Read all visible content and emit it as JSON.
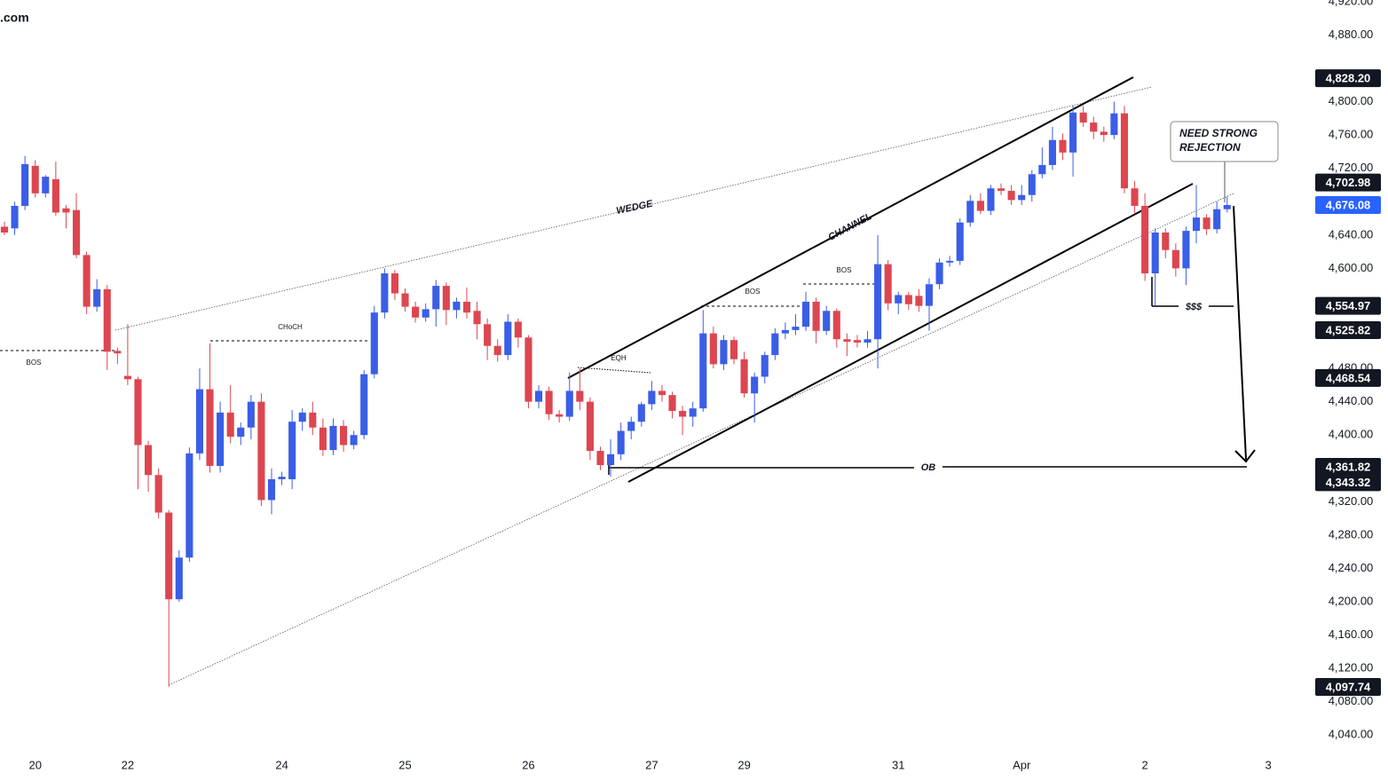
{
  "chart_data": {
    "type": "candlestick",
    "site": ".com",
    "up_color": "#3a5ee6",
    "down_color": "#dd4650",
    "ylim": [
      4019,
      4922
    ],
    "xlim": [
      -0.43,
      127.4
    ],
    "yticks": [
      {
        "value": 4040,
        "label": "4,040.00"
      },
      {
        "value": 4080,
        "label": "4,080.00"
      },
      {
        "value": 4120,
        "label": "4,120.00"
      },
      {
        "value": 4160,
        "label": "4,160.00"
      },
      {
        "value": 4200,
        "label": "4,200.00"
      },
      {
        "value": 4240,
        "label": "4,240.00"
      },
      {
        "value": 4280,
        "label": "4,280.00"
      },
      {
        "value": 4320,
        "label": "4,320.00"
      },
      {
        "value": 4400,
        "label": "4,400.00"
      },
      {
        "value": 4440,
        "label": "4,440.00"
      },
      {
        "value": 4480,
        "label": "4,480.00"
      },
      {
        "value": 4600,
        "label": "4,600.00"
      },
      {
        "value": 4640,
        "label": "4,640.00"
      },
      {
        "value": 4720,
        "label": "4,720.00"
      },
      {
        "value": 4760,
        "label": "4,760.00"
      },
      {
        "value": 4800,
        "label": "4,800.00"
      },
      {
        "value": 4880,
        "label": "4,880.00"
      },
      {
        "value": 4920,
        "label": "4,920.00"
      }
    ],
    "xticks": [
      {
        "value": 3,
        "label": "20"
      },
      {
        "value": 12,
        "label": "22"
      },
      {
        "value": 27,
        "label": "24"
      },
      {
        "value": 39,
        "label": "25"
      },
      {
        "value": 51,
        "label": "26"
      },
      {
        "value": 63,
        "label": "27"
      },
      {
        "value": 72,
        "label": "29"
      },
      {
        "value": 87,
        "label": "31"
      },
      {
        "value": 99,
        "label": "Apr"
      },
      {
        "value": 111,
        "label": "2"
      },
      {
        "value": 123,
        "label": "3"
      }
    ],
    "price_tags": [
      {
        "value": 4828.2,
        "label": "4,828.20",
        "color": "#131722"
      },
      {
        "value": 4702.98,
        "label": "4,702.98",
        "color": "#131722"
      },
      {
        "value": 4676.08,
        "label": "4,676.08",
        "color": "#2962ff"
      },
      {
        "value": 4554.97,
        "label": "4,554.97",
        "color": "#131722"
      },
      {
        "value": 4525.82,
        "label": "4,525.82",
        "color": "#131722"
      },
      {
        "value": 4468.54,
        "label": "4,468.54",
        "color": "#131722"
      },
      {
        "value": 4361.82,
        "label": "4,361.82",
        "color": "#131722"
      },
      {
        "value": 4343.32,
        "label": "4,343.32",
        "color": "#131722"
      },
      {
        "value": 4097.74,
        "label": "4,097.74",
        "color": "#131722"
      }
    ],
    "annotations": {
      "wedge": "WEDGE",
      "channel": "CHANNEL",
      "choch": "CHoCH",
      "bos_left": "BOS",
      "bos_mid": "BOS",
      "bos_right": "BOS",
      "eqh": "EQH",
      "ob": "OB",
      "liquidity": "$$$",
      "note_line1": "NEED STRONG",
      "note_line2": "REJECTION"
    },
    "candles": [
      [
        4650,
        4656,
        4640,
        4643
      ],
      [
        4648,
        4680,
        4640,
        4675
      ],
      [
        4675,
        4735,
        4670,
        4725
      ],
      [
        4723,
        4730,
        4685,
        4690
      ],
      [
        4690,
        4712,
        4685,
        4710
      ],
      [
        4707,
        4728,
        4663,
        4667
      ],
      [
        4672,
        4676,
        4648,
        4667
      ],
      [
        4670,
        4690,
        4612,
        4616
      ],
      [
        4616,
        4620,
        4545,
        4554
      ],
      [
        4554,
        4587,
        4548,
        4575
      ],
      [
        4575,
        4580,
        4478,
        4500
      ],
      [
        4501,
        4505,
        4485,
        4498
      ],
      [
        4471,
        4533,
        4460,
        4467
      ],
      [
        4467,
        4470,
        4335,
        4388
      ],
      [
        4388,
        4393,
        4332,
        4352
      ],
      [
        4352,
        4360,
        4300,
        4307
      ],
      [
        4307,
        4310,
        4098,
        4203
      ],
      [
        4203,
        4262,
        4200,
        4253
      ],
      [
        4253,
        4385,
        4248,
        4378
      ],
      [
        4378,
        4480,
        4370,
        4455
      ],
      [
        4455,
        4510,
        4355,
        4363
      ],
      [
        4363,
        4440,
        4355,
        4427
      ],
      [
        4427,
        4460,
        4390,
        4398
      ],
      [
        4398,
        4415,
        4388,
        4409
      ],
      [
        4409,
        4448,
        4395,
        4440
      ],
      [
        4440,
        4450,
        4315,
        4322
      ],
      [
        4322,
        4360,
        4305,
        4347
      ],
      [
        4347,
        4356,
        4340,
        4350
      ],
      [
        4347,
        4430,
        4335,
        4416
      ],
      [
        4416,
        4432,
        4405,
        4427
      ],
      [
        4427,
        4440,
        4400,
        4409
      ],
      [
        4409,
        4420,
        4375,
        4382
      ],
      [
        4382,
        4420,
        4376,
        4411
      ],
      [
        4411,
        4418,
        4380,
        4388
      ],
      [
        4388,
        4405,
        4383,
        4400
      ],
      [
        4400,
        4478,
        4395,
        4473
      ],
      [
        4473,
        4555,
        4468,
        4547
      ],
      [
        4547,
        4600,
        4540,
        4594
      ],
      [
        4594,
        4598,
        4562,
        4570
      ],
      [
        4570,
        4576,
        4548,
        4554
      ],
      [
        4554,
        4560,
        4535,
        4541
      ],
      [
        4541,
        4558,
        4536,
        4551
      ],
      [
        4551,
        4586,
        4530,
        4579
      ],
      [
        4579,
        4583,
        4532,
        4550
      ],
      [
        4550,
        4565,
        4540,
        4560
      ],
      [
        4560,
        4577,
        4540,
        4547
      ],
      [
        4549,
        4560,
        4515,
        4533
      ],
      [
        4533,
        4540,
        4490,
        4507
      ],
      [
        4507,
        4515,
        4488,
        4496
      ],
      [
        4496,
        4545,
        4490,
        4536
      ],
      [
        4536,
        4540,
        4505,
        4517
      ],
      [
        4517,
        4520,
        4432,
        4440
      ],
      [
        4440,
        4460,
        4432,
        4453
      ],
      [
        4453,
        4458,
        4418,
        4425
      ],
      [
        4425,
        4430,
        4415,
        4422
      ],
      [
        4422,
        4475,
        4417,
        4453
      ],
      [
        4453,
        4480,
        4430,
        4440
      ],
      [
        4440,
        4445,
        4370,
        4381
      ],
      [
        4381,
        4386,
        4358,
        4364
      ],
      [
        4364,
        4395,
        4350,
        4377
      ],
      [
        4377,
        4415,
        4370,
        4405
      ],
      [
        4405,
        4422,
        4395,
        4416
      ],
      [
        4416,
        4440,
        4410,
        4437
      ],
      [
        4437,
        4465,
        4430,
        4453
      ],
      [
        4453,
        4460,
        4440,
        4448
      ],
      [
        4448,
        4452,
        4420,
        4429
      ],
      [
        4429,
        4435,
        4400,
        4422
      ],
      [
        4422,
        4440,
        4410,
        4432
      ],
      [
        4432,
        4550,
        4428,
        4522
      ],
      [
        4522,
        4530,
        4480,
        4485
      ],
      [
        4485,
        4520,
        4478,
        4514
      ],
      [
        4514,
        4518,
        4485,
        4491
      ],
      [
        4491,
        4500,
        4445,
        4450
      ],
      [
        4450,
        4475,
        4415,
        4470
      ],
      [
        4470,
        4500,
        4462,
        4496
      ],
      [
        4496,
        4528,
        4490,
        4522
      ],
      [
        4522,
        4535,
        4515,
        4526
      ],
      [
        4526,
        4545,
        4520,
        4530
      ],
      [
        4530,
        4572,
        4525,
        4560
      ],
      [
        4560,
        4565,
        4510,
        4525
      ],
      [
        4525,
        4555,
        4520,
        4549
      ],
      [
        4549,
        4552,
        4505,
        4515
      ],
      [
        4515,
        4522,
        4495,
        4512
      ],
      [
        4514,
        4520,
        4505,
        4511
      ],
      [
        4511,
        4525,
        4505,
        4515
      ],
      [
        4515,
        4640,
        4480,
        4605
      ],
      [
        4605,
        4610,
        4550,
        4558
      ],
      [
        4558,
        4572,
        4545,
        4568
      ],
      [
        4568,
        4572,
        4550,
        4557
      ],
      [
        4567,
        4575,
        4548,
        4555
      ],
      [
        4555,
        4588,
        4525,
        4581
      ],
      [
        4581,
        4612,
        4575,
        4607
      ],
      [
        4607,
        4615,
        4602,
        4609
      ],
      [
        4609,
        4660,
        4604,
        4655
      ],
      [
        4655,
        4688,
        4650,
        4681
      ],
      [
        4681,
        4690,
        4665,
        4669
      ],
      [
        4669,
        4700,
        4664,
        4696
      ],
      [
        4696,
        4702,
        4688,
        4693
      ],
      [
        4693,
        4700,
        4676,
        4682
      ],
      [
        4682,
        4700,
        4676,
        4688
      ],
      [
        4688,
        4718,
        4680,
        4713
      ],
      [
        4713,
        4745,
        4708,
        4724
      ],
      [
        4724,
        4770,
        4718,
        4754
      ],
      [
        4754,
        4762,
        4730,
        4739
      ],
      [
        4739,
        4795,
        4710,
        4787
      ],
      [
        4787,
        4795,
        4770,
        4775
      ],
      [
        4775,
        4782,
        4755,
        4764
      ],
      [
        4764,
        4770,
        4752,
        4760
      ],
      [
        4760,
        4800,
        4755,
        4786
      ],
      [
        4786,
        4795,
        4690,
        4696
      ],
      [
        4696,
        4705,
        4665,
        4675
      ],
      [
        4675,
        4690,
        4585,
        4594
      ],
      [
        4594,
        4648,
        4555,
        4643
      ],
      [
        4643,
        4648,
        4612,
        4622
      ],
      [
        4622,
        4630,
        4590,
        4600
      ],
      [
        4600,
        4650,
        4580,
        4645
      ],
      [
        4645,
        4700,
        4630,
        4661
      ],
      [
        4661,
        4665,
        4640,
        4647
      ],
      [
        4647,
        4680,
        4642,
        4671
      ],
      [
        4671,
        4686,
        4667,
        4676
      ]
    ]
  }
}
